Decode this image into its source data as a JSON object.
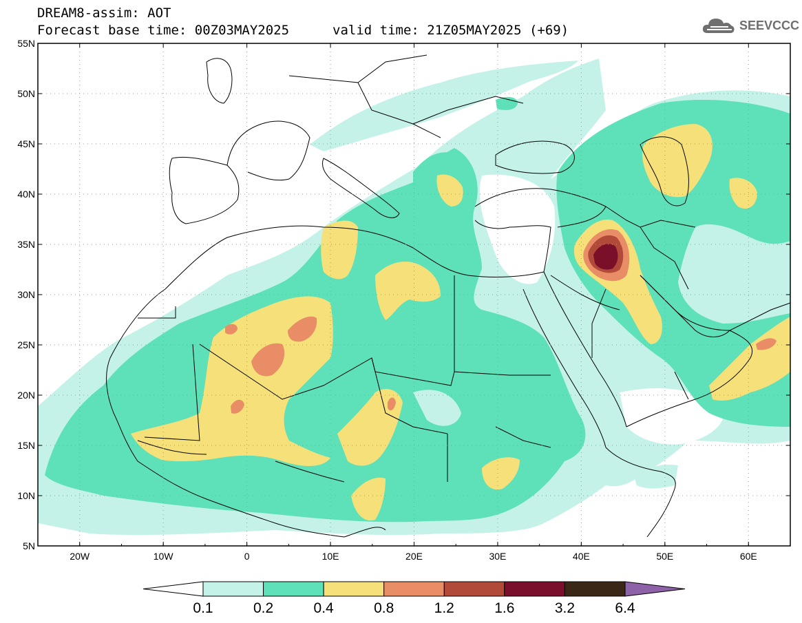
{
  "title": {
    "model_line": "DREAM8-assim: AOT",
    "base_time_line": "Forecast base time: 00Z03MAY2025",
    "valid_time_line": "valid time: 21Z05MAY2025 (+69)"
  },
  "logo": {
    "text": "SEEVCCC",
    "icon": "cloud-logo-icon"
  },
  "axes": {
    "lat_labels": [
      "55N",
      "50N",
      "45N",
      "40N",
      "35N",
      "30N",
      "25N",
      "20N",
      "15N",
      "10N",
      "5N"
    ],
    "lon_labels": [
      "20W",
      "10W",
      "0",
      "10E",
      "20E",
      "30E",
      "40E",
      "50E",
      "60E"
    ]
  },
  "colorbar": {
    "labels": [
      "0.1",
      "0.2",
      "0.4",
      "0.8",
      "1.2",
      "1.6",
      "3.2",
      "6.4"
    ],
    "colors": [
      "#c4f2e8",
      "#5ee0b8",
      "#f5e07a",
      "#e98d67",
      "#b24a3a",
      "#7a0f2a",
      "#3b2716",
      "#8e62a8"
    ],
    "under_color": "#ffffff"
  },
  "map_colors": {
    "level1": "#c4f2e8",
    "level2": "#5ee0b8",
    "level3": "#f5e07a",
    "level4": "#e98d67",
    "level5": "#b24a3a",
    "level6": "#7a0f2a"
  }
}
